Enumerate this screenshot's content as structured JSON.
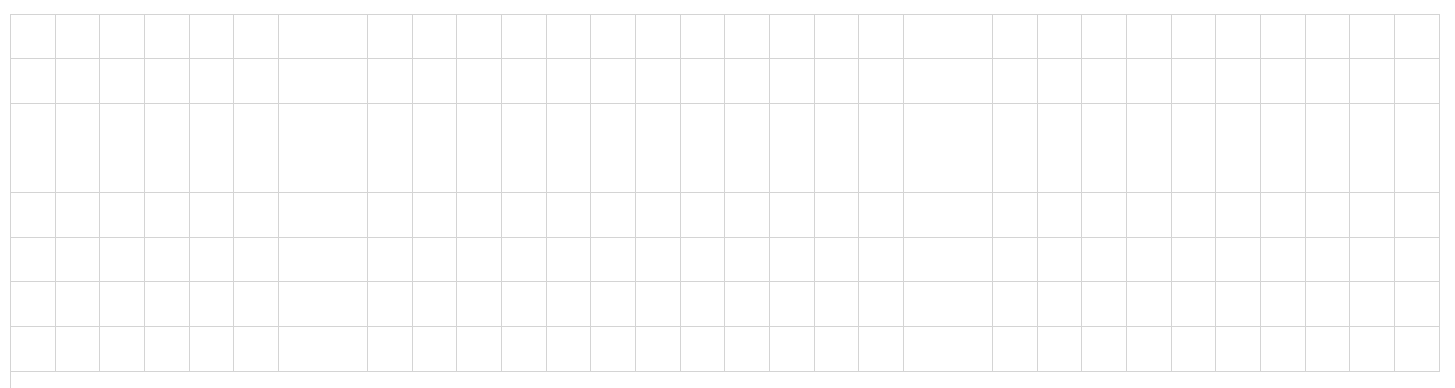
{
  "grid": {
    "rows": 8,
    "columns": 32,
    "line_color": "#d4d4d4",
    "cell_color": "#ffffff"
  }
}
